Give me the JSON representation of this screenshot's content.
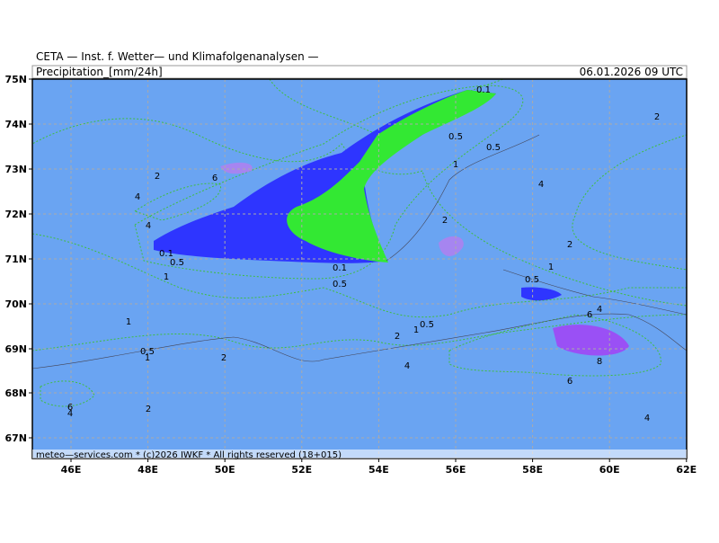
{
  "header": {
    "title": "CETA — Inst. f. Wetter— und Klimafolgenanalysen —",
    "left": "Precipitation_[mm/24h]",
    "right": "06.01.2026 09 UTC"
  },
  "footer": {
    "text": "meteo—services.com * (c)2026 IWKF * All rights reserved (18+015)"
  },
  "axes": {
    "y_labels": [
      "75N",
      "74N",
      "73N",
      "72N",
      "71N",
      "70N",
      "69N",
      "68N",
      "67N"
    ],
    "x_labels": [
      "46E",
      "48E",
      "50E",
      "52E",
      "54E",
      "56E",
      "58E",
      "60E",
      "62E"
    ]
  },
  "contour_labels": [
    "0.1",
    "2",
    "0.5",
    "0.5",
    "1",
    "2",
    "6",
    "4",
    "4",
    "2",
    "4",
    "2",
    "0.1",
    "0.5",
    "1",
    "0.1",
    "1",
    "0.5",
    "0.5",
    "4",
    "6",
    "1",
    "0.5",
    "1",
    "2",
    "0.5",
    "1",
    "2",
    "4",
    "8",
    "6",
    "6",
    "4",
    "2",
    "4"
  ]
}
